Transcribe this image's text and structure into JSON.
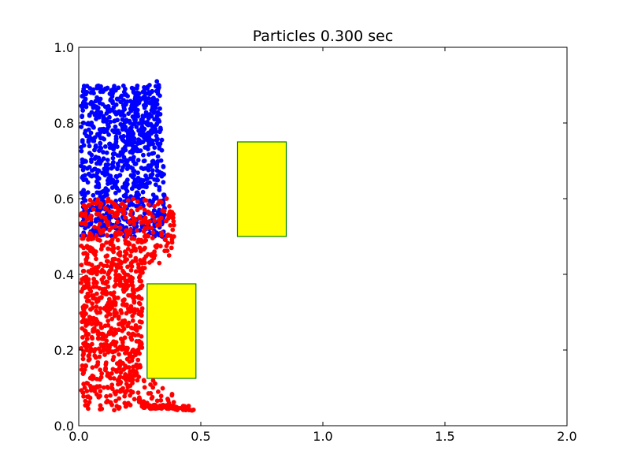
{
  "chart_data": {
    "type": "scatter",
    "title": "Particles 0.300 sec",
    "xlabel": "",
    "ylabel": "",
    "xlim": [
      0.0,
      2.0
    ],
    "ylim": [
      0.0,
      1.0
    ],
    "xticks": [
      0.0,
      0.5,
      1.0,
      1.5,
      2.0
    ],
    "xtick_labels": [
      "0.0",
      "0.5",
      "1.0",
      "1.5",
      "2.0"
    ],
    "yticks": [
      0.0,
      0.2,
      0.4,
      0.6,
      0.8,
      1.0
    ],
    "ytick_labels": [
      "0.0",
      "0.2",
      "0.4",
      "0.6",
      "0.8",
      "1.0"
    ],
    "grid": false,
    "legend": "none",
    "obstacles": [
      {
        "x": [
          0.28,
          0.48
        ],
        "y": [
          0.125,
          0.375
        ],
        "fill": "#ffff00",
        "edge": "#008000"
      },
      {
        "x": [
          0.65,
          0.85
        ],
        "y": [
          0.5,
          0.75
        ],
        "fill": "#ffff00",
        "edge": "#008000"
      }
    ],
    "series": [
      {
        "color": "#0000ff",
        "region": {
          "y_range": [
            0.5,
            0.9
          ],
          "left_x": 0.01,
          "right_x_at_top": 0.33,
          "right_x_at_bottom": 0.37
        },
        "points": [
          [
            0.02,
            0.89
          ],
          [
            0.05,
            0.88
          ],
          [
            0.09,
            0.89
          ],
          [
            0.14,
            0.88
          ],
          [
            0.19,
            0.89
          ],
          [
            0.24,
            0.88
          ],
          [
            0.29,
            0.9
          ],
          [
            0.32,
            0.91
          ],
          [
            0.03,
            0.85
          ],
          [
            0.08,
            0.84
          ],
          [
            0.13,
            0.86
          ],
          [
            0.18,
            0.83
          ],
          [
            0.23,
            0.85
          ],
          [
            0.27,
            0.84
          ],
          [
            0.31,
            0.86
          ],
          [
            0.02,
            0.8
          ],
          [
            0.06,
            0.79
          ],
          [
            0.11,
            0.81
          ],
          [
            0.16,
            0.78
          ],
          [
            0.21,
            0.8
          ],
          [
            0.26,
            0.79
          ],
          [
            0.31,
            0.81
          ],
          [
            0.04,
            0.75
          ],
          [
            0.09,
            0.76
          ],
          [
            0.14,
            0.74
          ],
          [
            0.19,
            0.75
          ],
          [
            0.24,
            0.73
          ],
          [
            0.29,
            0.75
          ],
          [
            0.33,
            0.74
          ],
          [
            0.02,
            0.7
          ],
          [
            0.07,
            0.71
          ],
          [
            0.12,
            0.69
          ],
          [
            0.17,
            0.7
          ],
          [
            0.22,
            0.68
          ],
          [
            0.27,
            0.7
          ],
          [
            0.32,
            0.69
          ],
          [
            0.03,
            0.65
          ],
          [
            0.08,
            0.64
          ],
          [
            0.13,
            0.66
          ],
          [
            0.18,
            0.63
          ],
          [
            0.23,
            0.65
          ],
          [
            0.28,
            0.64
          ],
          [
            0.33,
            0.63
          ],
          [
            0.02,
            0.6
          ],
          [
            0.06,
            0.59
          ],
          [
            0.11,
            0.61
          ],
          [
            0.16,
            0.58
          ],
          [
            0.21,
            0.6
          ],
          [
            0.26,
            0.59
          ],
          [
            0.31,
            0.6
          ],
          [
            0.35,
            0.61
          ],
          [
            0.02,
            0.55
          ],
          [
            0.07,
            0.54
          ],
          [
            0.12,
            0.55
          ],
          [
            0.17,
            0.53
          ],
          [
            0.22,
            0.56
          ],
          [
            0.27,
            0.55
          ],
          [
            0.33,
            0.57
          ],
          [
            0.02,
            0.51
          ],
          [
            0.06,
            0.51
          ],
          [
            0.1,
            0.52
          ],
          [
            0.14,
            0.53
          ]
        ]
      },
      {
        "color": "#ff0000",
        "region": {
          "y_range": [
            0.04,
            0.6
          ],
          "left_x": 0.01
        },
        "points": [
          [
            0.36,
            0.6
          ],
          [
            0.31,
            0.58
          ],
          [
            0.38,
            0.56
          ],
          [
            0.24,
            0.57
          ],
          [
            0.19,
            0.55
          ],
          [
            0.39,
            0.53
          ],
          [
            0.29,
            0.54
          ],
          [
            0.12,
            0.53
          ],
          [
            0.04,
            0.5
          ],
          [
            0.09,
            0.51
          ],
          [
            0.15,
            0.5
          ],
          [
            0.21,
            0.51
          ],
          [
            0.27,
            0.5
          ],
          [
            0.34,
            0.51
          ],
          [
            0.39,
            0.5
          ],
          [
            0.02,
            0.47
          ],
          [
            0.07,
            0.46
          ],
          [
            0.13,
            0.48
          ],
          [
            0.19,
            0.46
          ],
          [
            0.25,
            0.47
          ],
          [
            0.31,
            0.46
          ],
          [
            0.38,
            0.47
          ],
          [
            0.03,
            0.43
          ],
          [
            0.08,
            0.42
          ],
          [
            0.14,
            0.44
          ],
          [
            0.2,
            0.42
          ],
          [
            0.26,
            0.43
          ],
          [
            0.33,
            0.43
          ],
          [
            0.37,
            0.45
          ],
          [
            0.02,
            0.39
          ],
          [
            0.07,
            0.38
          ],
          [
            0.12,
            0.4
          ],
          [
            0.17,
            0.38
          ],
          [
            0.22,
            0.39
          ],
          [
            0.26,
            0.37
          ],
          [
            0.03,
            0.34
          ],
          [
            0.08,
            0.33
          ],
          [
            0.13,
            0.35
          ],
          [
            0.18,
            0.32
          ],
          [
            0.23,
            0.34
          ],
          [
            0.26,
            0.31
          ],
          [
            0.02,
            0.29
          ],
          [
            0.07,
            0.28
          ],
          [
            0.12,
            0.3
          ],
          [
            0.17,
            0.27
          ],
          [
            0.22,
            0.29
          ],
          [
            0.25,
            0.26
          ],
          [
            0.03,
            0.24
          ],
          [
            0.08,
            0.23
          ],
          [
            0.13,
            0.25
          ],
          [
            0.18,
            0.22
          ],
          [
            0.22,
            0.24
          ],
          [
            0.25,
            0.21
          ],
          [
            0.02,
            0.19
          ],
          [
            0.07,
            0.18
          ],
          [
            0.12,
            0.2
          ],
          [
            0.17,
            0.17
          ],
          [
            0.21,
            0.19
          ],
          [
            0.25,
            0.16
          ],
          [
            0.02,
            0.14
          ],
          [
            0.06,
            0.13
          ],
          [
            0.11,
            0.15
          ],
          [
            0.16,
            0.12
          ],
          [
            0.21,
            0.14
          ],
          [
            0.24,
            0.12
          ],
          [
            0.02,
            0.11
          ],
          [
            0.07,
            0.1
          ],
          [
            0.12,
            0.1
          ],
          [
            0.17,
            0.09
          ],
          [
            0.21,
            0.08
          ],
          [
            0.25,
            0.07
          ],
          [
            0.28,
            0.06
          ],
          [
            0.31,
            0.055
          ],
          [
            0.35,
            0.05
          ],
          [
            0.39,
            0.05
          ],
          [
            0.43,
            0.048
          ],
          [
            0.47,
            0.042
          ]
        ]
      }
    ]
  }
}
